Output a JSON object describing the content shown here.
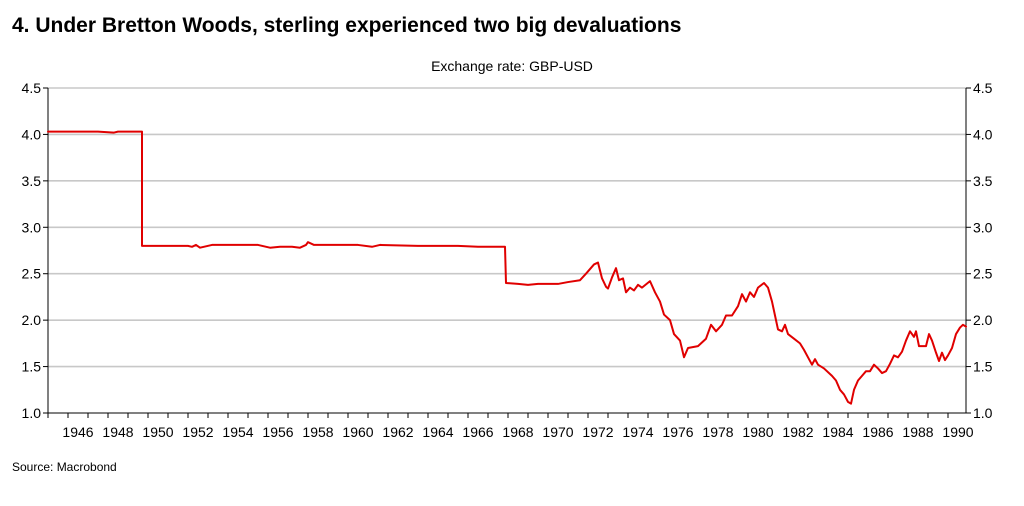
{
  "chart_data": {
    "type": "line",
    "title": "4.  Under Bretton Woods, sterling experienced two big devaluations",
    "subtitle": "Exchange rate: GBP-USD",
    "source": "Source: Macrobond",
    "xlabel": "",
    "ylabel": "",
    "xlim": [
      1945.0,
      1990.9
    ],
    "ylim": [
      1.0,
      4.5
    ],
    "x_ticks": [
      1946,
      1948,
      1950,
      1952,
      1954,
      1956,
      1958,
      1960,
      1962,
      1964,
      1966,
      1968,
      1970,
      1972,
      1974,
      1976,
      1978,
      1980,
      1982,
      1984,
      1986,
      1988,
      1990
    ],
    "x_tick_labels": [
      "1946",
      "1948",
      "1950",
      "1952",
      "1954",
      "1956",
      "1958",
      "1960",
      "1962",
      "1964",
      "1966",
      "1968",
      "1970",
      "1972",
      "1974",
      "1976",
      "1978",
      "1980",
      "1982",
      "1984",
      "1986",
      "1988",
      "1990"
    ],
    "y_ticks": [
      1.0,
      1.5,
      2.0,
      2.5,
      3.0,
      3.5,
      4.0,
      4.5
    ],
    "y_tick_labels": [
      "1.0",
      "1.5",
      "2.0",
      "2.5",
      "3.0",
      "3.5",
      "4.0",
      "4.5"
    ],
    "grid": "horizontal",
    "legend": "none",
    "line_color": "#e00000",
    "series": [
      {
        "points": [
          [
            1945.0,
            4.03
          ],
          [
            1946.5,
            4.03
          ],
          [
            1947.5,
            4.03
          ],
          [
            1948.3,
            4.02
          ],
          [
            1948.5,
            4.03
          ],
          [
            1949.7,
            4.03
          ],
          [
            1949.7,
            2.8
          ],
          [
            1950.5,
            2.8
          ],
          [
            1952.0,
            2.8
          ],
          [
            1952.2,
            2.79
          ],
          [
            1952.4,
            2.81
          ],
          [
            1952.6,
            2.78
          ],
          [
            1953.2,
            2.81
          ],
          [
            1955.5,
            2.81
          ],
          [
            1956.1,
            2.78
          ],
          [
            1956.6,
            2.79
          ],
          [
            1957.2,
            2.79
          ],
          [
            1957.6,
            2.78
          ],
          [
            1957.9,
            2.81
          ],
          [
            1958.0,
            2.84
          ],
          [
            1958.3,
            2.81
          ],
          [
            1959.5,
            2.81
          ],
          [
            1960.5,
            2.81
          ],
          [
            1961.2,
            2.79
          ],
          [
            1961.6,
            2.81
          ],
          [
            1963.5,
            2.8
          ],
          [
            1965.5,
            2.8
          ],
          [
            1966.5,
            2.79
          ],
          [
            1967.5,
            2.79
          ],
          [
            1967.85,
            2.79
          ],
          [
            1967.9,
            2.4
          ],
          [
            1968.5,
            2.39
          ],
          [
            1969.0,
            2.38
          ],
          [
            1969.5,
            2.39
          ],
          [
            1970.5,
            2.39
          ],
          [
            1971.0,
            2.41
          ],
          [
            1971.6,
            2.43
          ],
          [
            1971.9,
            2.5
          ],
          [
            1972.3,
            2.6
          ],
          [
            1972.5,
            2.62
          ],
          [
            1972.7,
            2.45
          ],
          [
            1972.9,
            2.36
          ],
          [
            1973.0,
            2.34
          ],
          [
            1973.2,
            2.46
          ],
          [
            1973.4,
            2.56
          ],
          [
            1973.55,
            2.43
          ],
          [
            1973.75,
            2.45
          ],
          [
            1973.9,
            2.3
          ],
          [
            1974.1,
            2.35
          ],
          [
            1974.3,
            2.32
          ],
          [
            1974.5,
            2.38
          ],
          [
            1974.7,
            2.35
          ],
          [
            1975.1,
            2.42
          ],
          [
            1975.35,
            2.3
          ],
          [
            1975.6,
            2.2
          ],
          [
            1975.8,
            2.06
          ],
          [
            1976.1,
            2.0
          ],
          [
            1976.3,
            1.85
          ],
          [
            1976.6,
            1.78
          ],
          [
            1976.8,
            1.6
          ],
          [
            1977.0,
            1.7
          ],
          [
            1977.5,
            1.72
          ],
          [
            1977.9,
            1.8
          ],
          [
            1978.15,
            1.95
          ],
          [
            1978.4,
            1.88
          ],
          [
            1978.7,
            1.95
          ],
          [
            1978.9,
            2.05
          ],
          [
            1979.2,
            2.05
          ],
          [
            1979.5,
            2.15
          ],
          [
            1979.7,
            2.28
          ],
          [
            1979.9,
            2.2
          ],
          [
            1980.1,
            2.3
          ],
          [
            1980.3,
            2.25
          ],
          [
            1980.5,
            2.35
          ],
          [
            1980.8,
            2.4
          ],
          [
            1981.0,
            2.35
          ],
          [
            1981.2,
            2.2
          ],
          [
            1981.35,
            2.05
          ],
          [
            1981.5,
            1.9
          ],
          [
            1981.7,
            1.88
          ],
          [
            1981.85,
            1.95
          ],
          [
            1982.0,
            1.85
          ],
          [
            1982.3,
            1.8
          ],
          [
            1982.6,
            1.75
          ],
          [
            1982.8,
            1.68
          ],
          [
            1983.0,
            1.6
          ],
          [
            1983.2,
            1.52
          ],
          [
            1983.35,
            1.58
          ],
          [
            1983.5,
            1.52
          ],
          [
            1983.8,
            1.48
          ],
          [
            1984.2,
            1.4
          ],
          [
            1984.4,
            1.35
          ],
          [
            1984.6,
            1.25
          ],
          [
            1984.8,
            1.2
          ],
          [
            1985.0,
            1.12
          ],
          [
            1985.15,
            1.1
          ],
          [
            1985.3,
            1.25
          ],
          [
            1985.5,
            1.35
          ],
          [
            1985.7,
            1.4
          ],
          [
            1985.9,
            1.45
          ],
          [
            1986.1,
            1.45
          ],
          [
            1986.3,
            1.52
          ],
          [
            1986.5,
            1.48
          ],
          [
            1986.7,
            1.43
          ],
          [
            1986.9,
            1.45
          ],
          [
            1987.1,
            1.53
          ],
          [
            1987.3,
            1.62
          ],
          [
            1987.5,
            1.6
          ],
          [
            1987.7,
            1.66
          ],
          [
            1987.9,
            1.78
          ],
          [
            1988.1,
            1.88
          ],
          [
            1988.3,
            1.82
          ],
          [
            1988.4,
            1.88
          ],
          [
            1988.55,
            1.72
          ],
          [
            1988.7,
            1.72
          ],
          [
            1988.9,
            1.72
          ],
          [
            1989.05,
            1.85
          ],
          [
            1989.2,
            1.78
          ],
          [
            1989.4,
            1.65
          ],
          [
            1989.55,
            1.56
          ],
          [
            1989.7,
            1.65
          ],
          [
            1989.85,
            1.57
          ],
          [
            1990.0,
            1.62
          ],
          [
            1990.2,
            1.7
          ],
          [
            1990.4,
            1.85
          ],
          [
            1990.6,
            1.92
          ],
          [
            1990.75,
            1.95
          ],
          [
            1990.9,
            1.93
          ]
        ]
      }
    ]
  }
}
